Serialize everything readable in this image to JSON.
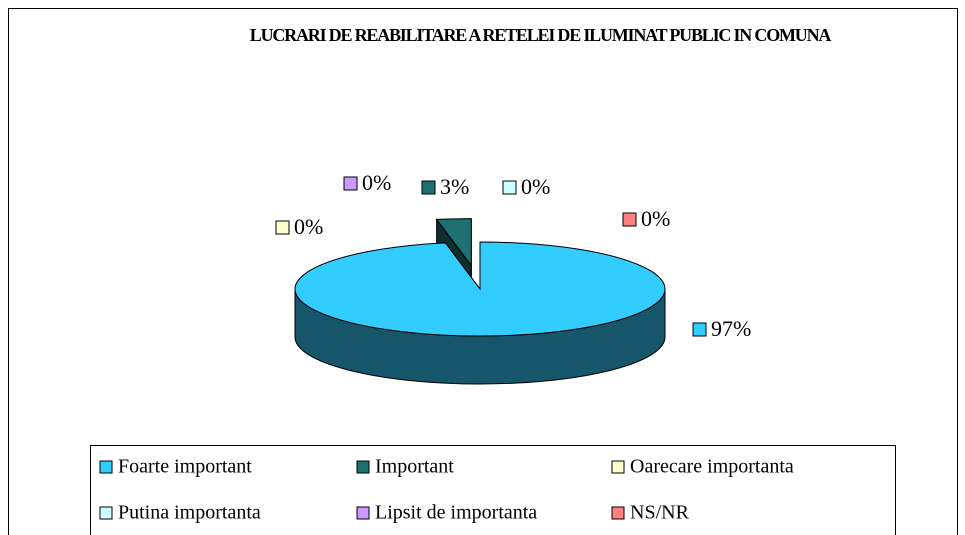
{
  "chart_data": {
    "type": "pie",
    "title": "LUCRARI DE REABILITARE A RETELEI DE ILUMINAT PUBLIC IN COMUNA",
    "categories": [
      "Foarte important",
      "Important",
      "Oarecare importanta",
      "Putina importanta",
      "Lipsit de importanta",
      "NS/NR"
    ],
    "values": [
      97,
      3,
      0,
      0,
      0,
      0
    ],
    "value_labels": [
      "97%",
      "3%",
      "0%",
      "0%",
      "0%",
      "0%"
    ],
    "colors": [
      "#33CCFF",
      "#1F7070",
      "#FFFFCC",
      "#CCFFFF",
      "#CC99FF",
      "#FF8080"
    ],
    "legend": "bottom"
  }
}
